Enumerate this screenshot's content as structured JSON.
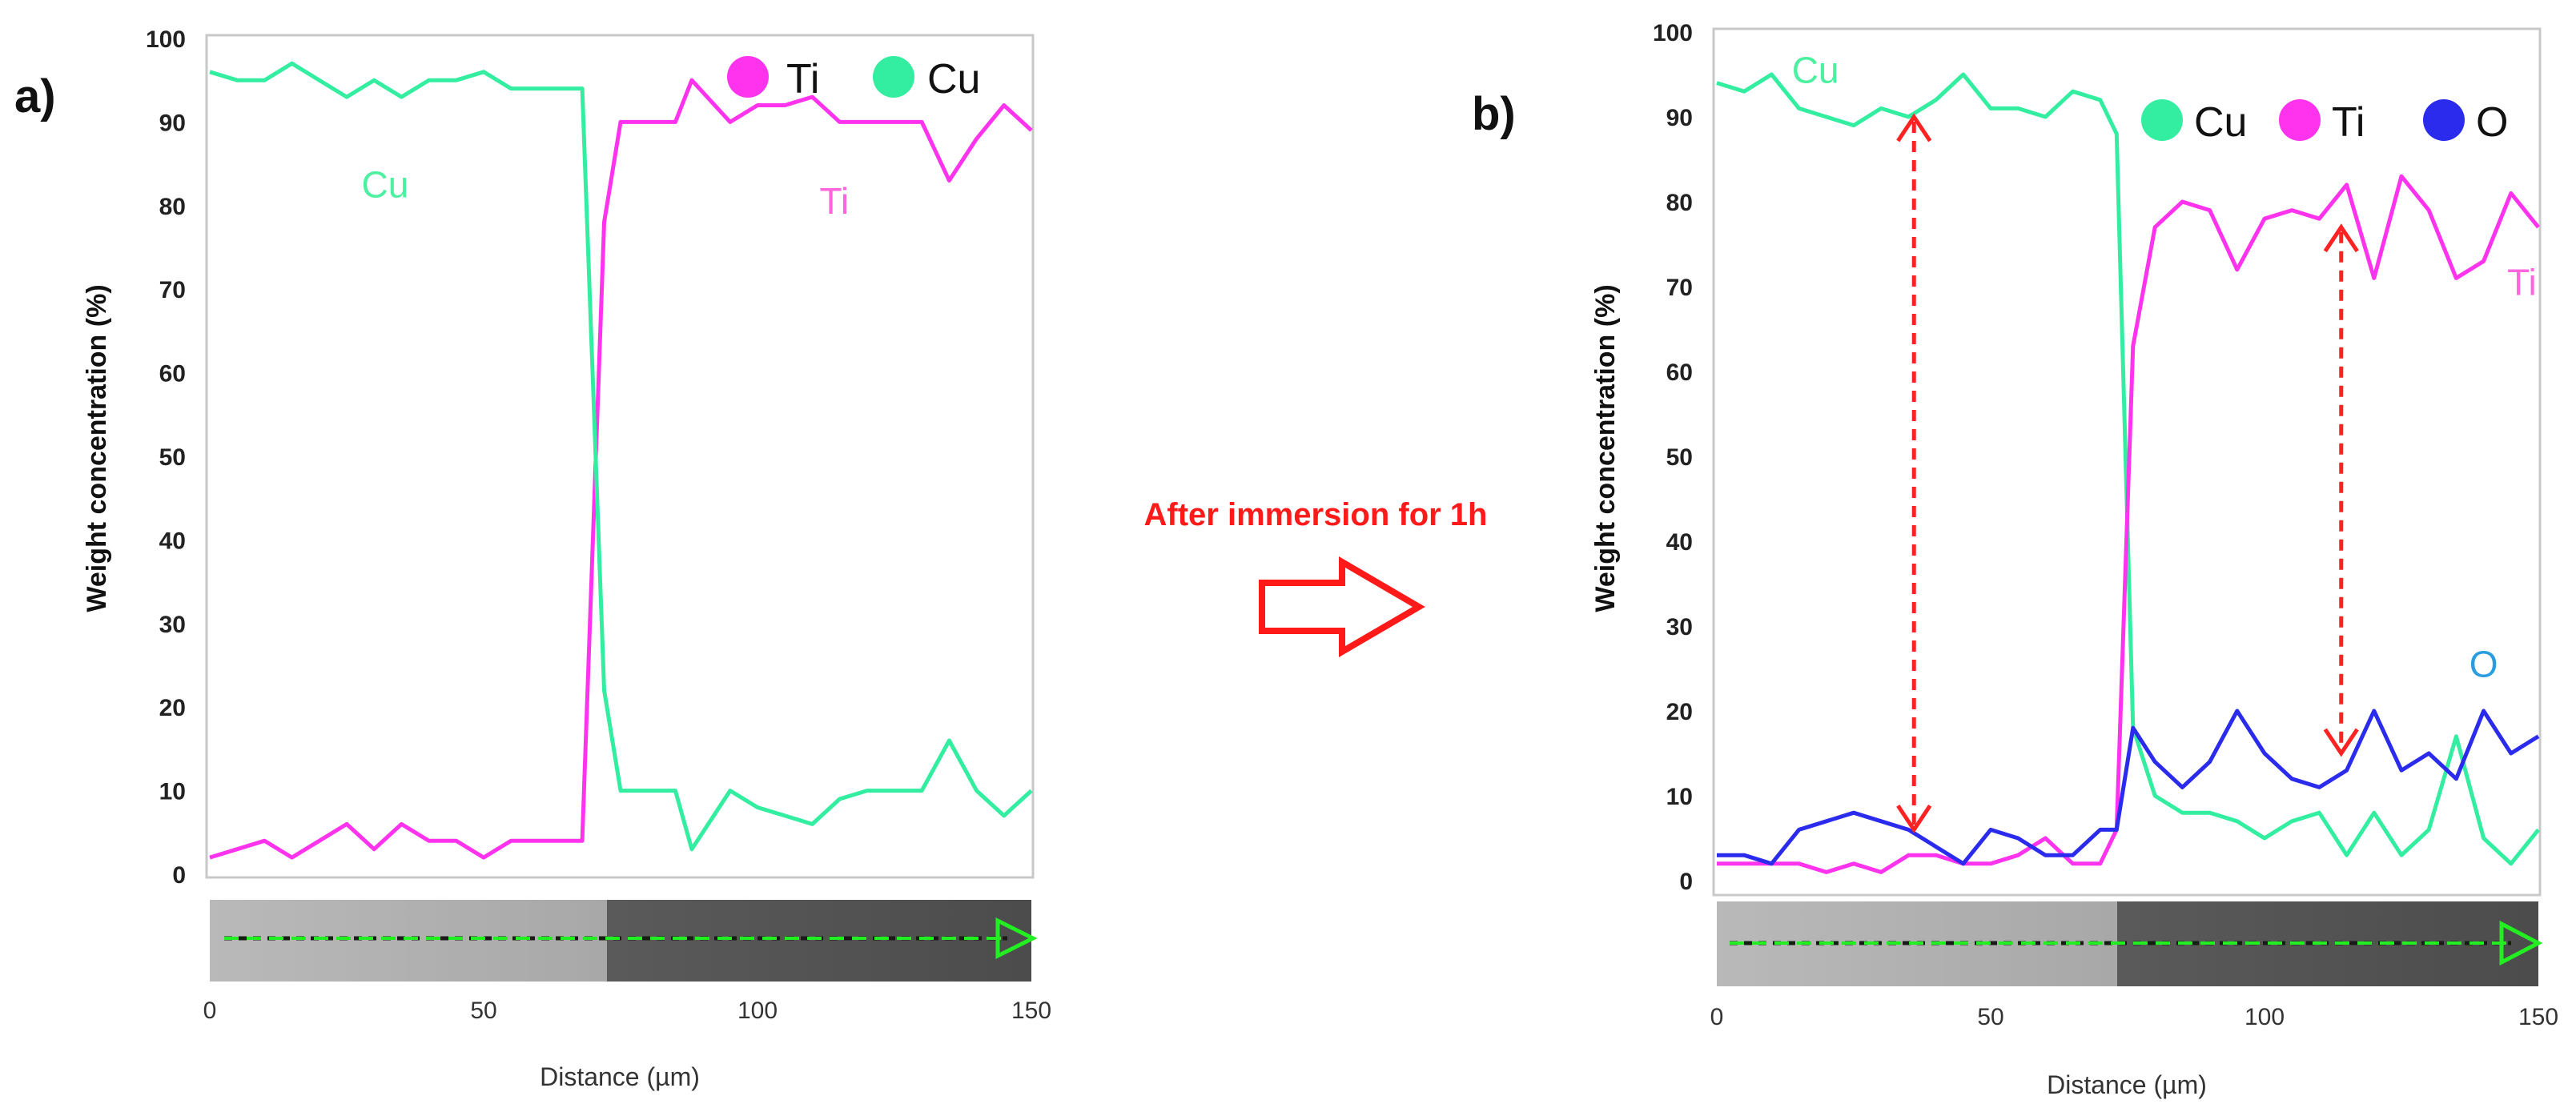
{
  "figure": {
    "transition_label": "After immersion for 1h",
    "arrow_icon": "right-arrow-icon"
  },
  "chart_data": [
    {
      "type": "line",
      "panel_label": "a)",
      "title": "",
      "xlabel": "Distance (µm)",
      "ylabel": "Weight concentration (%)",
      "xlim": [
        0,
        150
      ],
      "ylim": [
        0,
        100
      ],
      "xticks": [
        "0",
        "50",
        "100",
        "150"
      ],
      "yticks": [
        "0",
        "10",
        "20",
        "30",
        "40",
        "50",
        "60",
        "70",
        "80",
        "90",
        "100"
      ],
      "legend": [
        "Ti",
        "Cu"
      ],
      "annotations": [
        {
          "text": "Cu",
          "color": "#4cf0a0",
          "x": 32,
          "y": 81
        },
        {
          "text": "Ti",
          "color": "#ff66dd",
          "x": 114,
          "y": 79
        }
      ],
      "series": [
        {
          "name": "Ti",
          "color": "#ff33ee",
          "x": [
            0,
            5,
            10,
            15,
            20,
            25,
            30,
            35,
            40,
            45,
            50,
            55,
            60,
            65,
            68,
            72,
            75,
            80,
            85,
            88,
            95,
            100,
            105,
            110,
            115,
            120,
            125,
            130,
            135,
            140,
            145,
            150
          ],
          "y": [
            2,
            3,
            4,
            2,
            4,
            6,
            3,
            6,
            4,
            4,
            2,
            4,
            4,
            4,
            4,
            78,
            90,
            90,
            90,
            95,
            90,
            92,
            92,
            93,
            90,
            90,
            90,
            90,
            83,
            88,
            92,
            89
          ]
        },
        {
          "name": "Cu",
          "color": "#33eea0",
          "x": [
            0,
            5,
            10,
            15,
            20,
            25,
            30,
            35,
            40,
            45,
            50,
            55,
            60,
            65,
            68,
            72,
            75,
            80,
            85,
            88,
            95,
            100,
            105,
            110,
            115,
            120,
            125,
            130,
            135,
            140,
            145,
            150
          ],
          "y": [
            96,
            95,
            95,
            97,
            95,
            93,
            95,
            93,
            95,
            95,
            96,
            94,
            94,
            94,
            94,
            22,
            10,
            10,
            10,
            3,
            10,
            8,
            7,
            6,
            9,
            10,
            10,
            10,
            16,
            10,
            7,
            10
          ]
        }
      ],
      "scale_bar": {
        "arrow": "dashed-arrow-right"
      }
    },
    {
      "type": "line",
      "panel_label": "b)",
      "title": "",
      "xlabel": "Distance (µm)",
      "ylabel": "Weight concentration (%)",
      "xlim": [
        0,
        150
      ],
      "ylim": [
        0,
        100
      ],
      "xticks": [
        "0",
        "50",
        "100",
        "150"
      ],
      "yticks": [
        "0",
        "10",
        "20",
        "30",
        "40",
        "50",
        "60",
        "70",
        "80",
        "90",
        "100"
      ],
      "legend": [
        "Cu",
        "Ti",
        "O"
      ],
      "annotations": [
        {
          "text": "Cu",
          "color": "#4cf0a0",
          "x": 18,
          "y": 94
        },
        {
          "text": "Ti",
          "color": "#ff66dd",
          "x": 147,
          "y": 69
        },
        {
          "text": "O",
          "color": "#2a9de0",
          "x": 140,
          "y": 24
        }
      ],
      "arrows": [
        {
          "x": 36,
          "y_from": 6,
          "y_to": 90
        },
        {
          "x": 114,
          "y_from": 15,
          "y_to": 77
        }
      ],
      "series": [
        {
          "name": "Cu",
          "color": "#33eea0",
          "x": [
            0,
            5,
            10,
            15,
            20,
            25,
            30,
            35,
            40,
            45,
            50,
            55,
            60,
            65,
            70,
            73,
            76,
            80,
            85,
            90,
            95,
            100,
            105,
            110,
            115,
            120,
            125,
            130,
            135,
            140,
            145,
            150
          ],
          "y": [
            94,
            93,
            95,
            91,
            90,
            89,
            91,
            90,
            92,
            95,
            91,
            91,
            90,
            93,
            92,
            88,
            18,
            10,
            8,
            8,
            7,
            5,
            7,
            8,
            3,
            8,
            3,
            6,
            17,
            5,
            2,
            6
          ]
        },
        {
          "name": "Ti",
          "color": "#ff33ee",
          "x": [
            0,
            5,
            10,
            15,
            20,
            25,
            30,
            35,
            40,
            45,
            50,
            55,
            60,
            65,
            70,
            73,
            76,
            80,
            85,
            90,
            95,
            100,
            105,
            110,
            115,
            120,
            125,
            130,
            135,
            140,
            145,
            150
          ],
          "y": [
            2,
            2,
            2,
            2,
            1,
            2,
            1,
            3,
            3,
            2,
            2,
            3,
            5,
            2,
            2,
            6,
            63,
            77,
            80,
            79,
            72,
            78,
            79,
            78,
            82,
            71,
            83,
            79,
            71,
            73,
            81,
            77
          ]
        },
        {
          "name": "O",
          "color": "#2b2bee",
          "x": [
            0,
            5,
            10,
            15,
            20,
            25,
            30,
            35,
            40,
            45,
            50,
            55,
            60,
            65,
            70,
            73,
            76,
            80,
            85,
            90,
            95,
            100,
            105,
            110,
            115,
            120,
            125,
            130,
            135,
            140,
            145,
            150
          ],
          "y": [
            3,
            3,
            2,
            6,
            7,
            8,
            7,
            6,
            4,
            2,
            6,
            5,
            3,
            3,
            6,
            6,
            18,
            14,
            11,
            14,
            20,
            15,
            12,
            11,
            13,
            20,
            13,
            15,
            12,
            20,
            15,
            17
          ]
        }
      ],
      "scale_bar": {
        "arrow": "dashed-arrow-right"
      }
    }
  ]
}
